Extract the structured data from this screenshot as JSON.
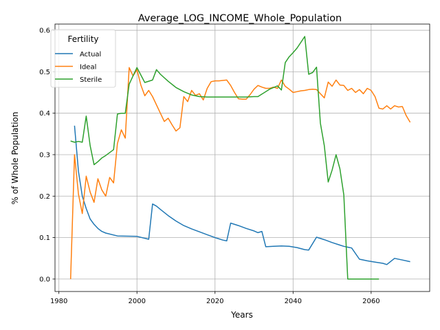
{
  "chart_data": {
    "type": "line",
    "title": "Average_LOG_INCOME_Whole_Population",
    "xlabel": "Years",
    "ylabel": "% of Whole Population",
    "xlim": [
      1979,
      2075
    ],
    "ylim": [
      -0.03,
      0.615
    ],
    "xticks": [
      1980,
      2000,
      2020,
      2040,
      2060
    ],
    "yticks": [
      0.0,
      0.1,
      0.2,
      0.3,
      0.4,
      0.5,
      0.6
    ],
    "xtick_labels": [
      "1980",
      "2000",
      "2020",
      "2040",
      "2060"
    ],
    "ytick_labels": [
      "0.0",
      "0.1",
      "0.2",
      "0.3",
      "0.4",
      "0.5",
      "0.6"
    ],
    "grid": true,
    "legend": {
      "title": "Fertility",
      "placement": "top-left"
    },
    "series": [
      {
        "name": "Actual",
        "color": "#1f77b4",
        "x": [
          1984,
          1985,
          1986,
          1987,
          1988,
          1989,
          1990,
          1991,
          1992,
          1995,
          2000,
          2003,
          2004,
          2005,
          2006,
          2008,
          2010,
          2012,
          2014,
          2016,
          2018,
          2020,
          2022,
          2023,
          2024,
          2026,
          2028,
          2030,
          2031,
          2032,
          2033,
          2035,
          2037,
          2039,
          2041,
          2043,
          2044,
          2046,
          2048,
          2050,
          2052,
          2053,
          2055,
          2057,
          2059,
          2061,
          2063,
          2064,
          2066,
          2068,
          2070
        ],
        "y": [
          0.37,
          0.26,
          0.2,
          0.17,
          0.145,
          0.132,
          0.122,
          0.115,
          0.111,
          0.104,
          0.103,
          0.096,
          0.181,
          0.176,
          0.168,
          0.153,
          0.14,
          0.129,
          0.121,
          0.114,
          0.107,
          0.1,
          0.094,
          0.092,
          0.135,
          0.129,
          0.122,
          0.116,
          0.112,
          0.115,
          0.078,
          0.079,
          0.08,
          0.079,
          0.076,
          0.071,
          0.07,
          0.101,
          0.095,
          0.088,
          0.082,
          0.079,
          0.075,
          0.048,
          0.044,
          0.041,
          0.038,
          0.035,
          0.05,
          0.046,
          0.042
        ]
      },
      {
        "name": "Ideal",
        "color": "#ff7f0e",
        "x": [
          1983,
          1984,
          1985,
          1986,
          1987,
          1988,
          1989,
          1990,
          1991,
          1992,
          1993,
          1994,
          1995,
          1996,
          1997,
          1998,
          1999,
          2000,
          2001,
          2002,
          2003,
          2004,
          2005,
          2006,
          2007,
          2008,
          2009,
          2010,
          2011,
          2012,
          2013,
          2014,
          2015,
          2016,
          2017,
          2018,
          2019,
          2020,
          2021,
          2022,
          2023,
          2024,
          2025,
          2026,
          2027,
          2028,
          2029,
          2030,
          2031,
          2032,
          2033,
          2034,
          2035,
          2036,
          2037,
          2038,
          2039,
          2040,
          2041,
          2042,
          2043,
          2044,
          2045,
          2046,
          2047,
          2048,
          2049,
          2050,
          2051,
          2052,
          2053,
          2054,
          2055,
          2056,
          2057,
          2058,
          2059,
          2060,
          2061,
          2062,
          2063,
          2064,
          2065,
          2066,
          2067,
          2068,
          2069,
          2070
        ],
        "y": [
          0.0,
          0.3,
          0.205,
          0.158,
          0.248,
          0.21,
          0.185,
          0.242,
          0.215,
          0.2,
          0.245,
          0.232,
          0.327,
          0.36,
          0.34,
          0.51,
          0.49,
          0.505,
          0.468,
          0.442,
          0.455,
          0.44,
          0.42,
          0.4,
          0.38,
          0.388,
          0.372,
          0.357,
          0.365,
          0.44,
          0.428,
          0.455,
          0.443,
          0.447,
          0.432,
          0.46,
          0.476,
          0.478,
          0.478,
          0.479,
          0.48,
          0.467,
          0.45,
          0.435,
          0.434,
          0.434,
          0.445,
          0.458,
          0.467,
          0.463,
          0.46,
          0.46,
          0.463,
          0.46,
          0.48,
          0.465,
          0.458,
          0.45,
          0.452,
          0.454,
          0.455,
          0.457,
          0.458,
          0.457,
          0.447,
          0.437,
          0.475,
          0.465,
          0.48,
          0.468,
          0.467,
          0.455,
          0.46,
          0.45,
          0.457,
          0.447,
          0.46,
          0.455,
          0.44,
          0.412,
          0.41,
          0.418,
          0.41,
          0.418,
          0.415,
          0.416,
          0.394,
          0.378
        ]
      },
      {
        "name": "Sterile",
        "color": "#2ca02c",
        "x": [
          1983,
          1984,
          1985,
          1986,
          1987,
          1988,
          1989,
          1990,
          1991,
          1992,
          1994,
          1995,
          1996,
          1997,
          1998,
          1999,
          2000,
          2002,
          2004,
          2005,
          2006,
          2008,
          2010,
          2012,
          2014,
          2016,
          2018,
          2020,
          2022,
          2024,
          2026,
          2028,
          2030,
          2031,
          2032,
          2034,
          2036,
          2037,
          2038,
          2039,
          2040,
          2041,
          2042,
          2043,
          2044,
          2045,
          2046,
          2047,
          2048,
          2049,
          2050,
          2051,
          2052,
          2053,
          2054,
          2056,
          2058,
          2060,
          2062
        ],
        "y": [
          0.333,
          0.33,
          0.332,
          0.33,
          0.393,
          0.322,
          0.276,
          0.283,
          0.292,
          0.298,
          0.312,
          0.398,
          0.4,
          0.4,
          0.47,
          0.49,
          0.51,
          0.474,
          0.48,
          0.505,
          0.494,
          0.477,
          0.462,
          0.452,
          0.444,
          0.44,
          0.439,
          0.439,
          0.439,
          0.439,
          0.439,
          0.439,
          0.44,
          0.44,
          0.446,
          0.458,
          0.466,
          0.456,
          0.522,
          0.536,
          0.546,
          0.557,
          0.571,
          0.585,
          0.494,
          0.498,
          0.511,
          0.376,
          0.322,
          0.234,
          0.263,
          0.3,
          0.266,
          0.203,
          0.0,
          0.0,
          0.0,
          0.0,
          0.0
        ]
      }
    ]
  }
}
